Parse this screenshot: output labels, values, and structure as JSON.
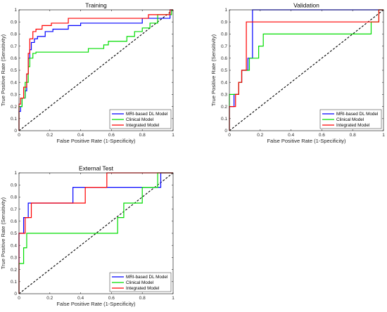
{
  "colors": {
    "mri": "#0000ff",
    "clinical": "#00dd00",
    "integrated": "#ff0000",
    "reference": "#000000",
    "axis": "#262626"
  },
  "chart_data": [
    {
      "type": "line",
      "title": "Training",
      "xlabel": "False Positive Rate (1-Specificity)",
      "ylabel": "True Positive Rate (Sensitivity)",
      "xlim": [
        0,
        1
      ],
      "ylim": [
        0,
        1
      ],
      "xticks": [
        "0",
        "0.2",
        "0.4",
        "0.6",
        "0.8",
        "1"
      ],
      "yticks": [
        "0",
        "0.1",
        "0.2",
        "0.3",
        "0.4",
        "0.5",
        "0.6",
        "0.7",
        "0.8",
        "0.9",
        "1"
      ],
      "grid": false,
      "legend_position": "bottom-right",
      "reference_line": true,
      "series": [
        {
          "name": "MRI-based DL Model",
          "color_key": "mri",
          "points": [
            [
              0,
              0
            ],
            [
              0,
              0.16
            ],
            [
              0.01,
              0.16
            ],
            [
              0.01,
              0.2
            ],
            [
              0.02,
              0.2
            ],
            [
              0.02,
              0.27
            ],
            [
              0.04,
              0.27
            ],
            [
              0.04,
              0.33
            ],
            [
              0.05,
              0.33
            ],
            [
              0.05,
              0.47
            ],
            [
              0.06,
              0.47
            ],
            [
              0.06,
              0.6
            ],
            [
              0.07,
              0.6
            ],
            [
              0.07,
              0.67
            ],
            [
              0.08,
              0.67
            ],
            [
              0.08,
              0.73
            ],
            [
              0.1,
              0.73
            ],
            [
              0.1,
              0.76
            ],
            [
              0.12,
              0.76
            ],
            [
              0.12,
              0.78
            ],
            [
              0.17,
              0.78
            ],
            [
              0.17,
              0.82
            ],
            [
              0.22,
              0.82
            ],
            [
              0.22,
              0.84
            ],
            [
              0.32,
              0.84
            ],
            [
              0.32,
              0.87
            ],
            [
              0.4,
              0.87
            ],
            [
              0.4,
              0.89
            ],
            [
              0.8,
              0.89
            ],
            [
              0.8,
              0.93
            ],
            [
              0.98,
              0.93
            ],
            [
              0.98,
              1
            ],
            [
              1,
              1
            ]
          ]
        },
        {
          "name": "Clinical Model",
          "color_key": "clinical",
          "points": [
            [
              0,
              0
            ],
            [
              0,
              0.2
            ],
            [
              0.02,
              0.2
            ],
            [
              0.02,
              0.27
            ],
            [
              0.04,
              0.27
            ],
            [
              0.04,
              0.4
            ],
            [
              0.06,
              0.4
            ],
            [
              0.06,
              0.53
            ],
            [
              0.07,
              0.53
            ],
            [
              0.07,
              0.6
            ],
            [
              0.09,
              0.6
            ],
            [
              0.09,
              0.64
            ],
            [
              0.11,
              0.64
            ],
            [
              0.11,
              0.65
            ],
            [
              0.45,
              0.65
            ],
            [
              0.45,
              0.68
            ],
            [
              0.55,
              0.68
            ],
            [
              0.55,
              0.71
            ],
            [
              0.58,
              0.71
            ],
            [
              0.58,
              0.74
            ],
            [
              0.7,
              0.74
            ],
            [
              0.7,
              0.78
            ],
            [
              0.75,
              0.78
            ],
            [
              0.75,
              0.82
            ],
            [
              0.8,
              0.82
            ],
            [
              0.8,
              0.85
            ],
            [
              0.85,
              0.85
            ],
            [
              0.85,
              0.89
            ],
            [
              0.9,
              0.89
            ],
            [
              0.9,
              0.96
            ],
            [
              0.99,
              0.96
            ],
            [
              0.99,
              1
            ],
            [
              1,
              1
            ]
          ]
        },
        {
          "name": "Integrated Model",
          "color_key": "integrated",
          "points": [
            [
              0,
              0
            ],
            [
              0,
              0.22
            ],
            [
              0.01,
              0.22
            ],
            [
              0.01,
              0.27
            ],
            [
              0.03,
              0.27
            ],
            [
              0.03,
              0.36
            ],
            [
              0.05,
              0.36
            ],
            [
              0.05,
              0.47
            ],
            [
              0.06,
              0.47
            ],
            [
              0.06,
              0.64
            ],
            [
              0.07,
              0.64
            ],
            [
              0.07,
              0.76
            ],
            [
              0.09,
              0.76
            ],
            [
              0.09,
              0.82
            ],
            [
              0.11,
              0.82
            ],
            [
              0.11,
              0.84
            ],
            [
              0.15,
              0.84
            ],
            [
              0.15,
              0.87
            ],
            [
              0.21,
              0.87
            ],
            [
              0.21,
              0.89
            ],
            [
              0.32,
              0.89
            ],
            [
              0.32,
              0.93
            ],
            [
              0.84,
              0.93
            ],
            [
              0.84,
              0.96
            ],
            [
              0.98,
              0.96
            ],
            [
              0.98,
              1
            ],
            [
              1,
              1
            ]
          ]
        }
      ]
    },
    {
      "type": "line",
      "title": "Validation",
      "xlabel": "False Positive Rate (1-Specificity)",
      "ylabel": "True Positive Rate (Sensitivity)",
      "xlim": [
        0,
        1
      ],
      "ylim": [
        0,
        1
      ],
      "xticks": [
        "0",
        "0.2",
        "0.4",
        "0.6",
        "0.8",
        "1"
      ],
      "yticks": [
        "0",
        "0.1",
        "0.2",
        "0.3",
        "0.4",
        "0.5",
        "0.6",
        "0.7",
        "0.8",
        "0.9",
        "1"
      ],
      "grid": false,
      "legend_position": "bottom-right",
      "reference_line": true,
      "series": [
        {
          "name": "MRI-based DL Model",
          "color_key": "mri",
          "points": [
            [
              0,
              0
            ],
            [
              0,
              0.2
            ],
            [
              0.03,
              0.2
            ],
            [
              0.03,
              0.3
            ],
            [
              0.06,
              0.3
            ],
            [
              0.06,
              0.4
            ],
            [
              0.08,
              0.4
            ],
            [
              0.08,
              0.5
            ],
            [
              0.12,
              0.5
            ],
            [
              0.12,
              0.6
            ],
            [
              0.15,
              0.6
            ],
            [
              0.15,
              1
            ],
            [
              1,
              1
            ]
          ]
        },
        {
          "name": "Clinical Model",
          "color_key": "clinical",
          "points": [
            [
              0,
              0
            ],
            [
              0,
              0.3
            ],
            [
              0.06,
              0.3
            ],
            [
              0.06,
              0.4
            ],
            [
              0.08,
              0.4
            ],
            [
              0.08,
              0.5
            ],
            [
              0.13,
              0.5
            ],
            [
              0.13,
              0.6
            ],
            [
              0.19,
              0.6
            ],
            [
              0.19,
              0.7
            ],
            [
              0.22,
              0.7
            ],
            [
              0.22,
              0.8
            ],
            [
              0.92,
              0.8
            ],
            [
              0.92,
              0.9
            ],
            [
              0.97,
              0.9
            ],
            [
              0.97,
              1
            ],
            [
              1,
              1
            ]
          ]
        },
        {
          "name": "Integrated Model",
          "color_key": "integrated",
          "points": [
            [
              0,
              0
            ],
            [
              0,
              0.2
            ],
            [
              0.04,
              0.2
            ],
            [
              0.04,
              0.3
            ],
            [
              0.06,
              0.3
            ],
            [
              0.06,
              0.4
            ],
            [
              0.08,
              0.4
            ],
            [
              0.08,
              0.5
            ],
            [
              0.11,
              0.5
            ],
            [
              0.11,
              0.9
            ],
            [
              0.97,
              0.9
            ],
            [
              0.97,
              1
            ],
            [
              1,
              1
            ]
          ]
        }
      ]
    },
    {
      "type": "line",
      "title": "External Test",
      "xlabel": "False Positive Rate (1-Specificity)",
      "ylabel": "True Positive Rate (Sensitivity)",
      "xlim": [
        0,
        1
      ],
      "ylim": [
        0,
        1
      ],
      "xticks": [
        "0",
        "0.2",
        "0.4",
        "0.6",
        "0.8",
        "1"
      ],
      "yticks": [
        "0",
        "0.1",
        "0.2",
        "0.3",
        "0.4",
        "0.5",
        "0.6",
        "0.7",
        "0.8",
        "0.9",
        "1"
      ],
      "grid": false,
      "legend_position": "bottom-right",
      "reference_line": true,
      "series": [
        {
          "name": "MRI-based DL Model",
          "color_key": "mri",
          "points": [
            [
              0,
              0
            ],
            [
              0,
              0.5
            ],
            [
              0.03,
              0.5
            ],
            [
              0.03,
              0.63
            ],
            [
              0.06,
              0.63
            ],
            [
              0.06,
              0.75
            ],
            [
              0.35,
              0.75
            ],
            [
              0.35,
              0.88
            ],
            [
              0.92,
              0.88
            ],
            [
              0.92,
              1
            ],
            [
              1,
              1
            ]
          ]
        },
        {
          "name": "Clinical Model",
          "color_key": "clinical",
          "points": [
            [
              0,
              0
            ],
            [
              0,
              0.25
            ],
            [
              0.03,
              0.25
            ],
            [
              0.03,
              0.38
            ],
            [
              0.05,
              0.38
            ],
            [
              0.05,
              0.5
            ],
            [
              0.64,
              0.5
            ],
            [
              0.64,
              0.63
            ],
            [
              0.68,
              0.63
            ],
            [
              0.68,
              0.75
            ],
            [
              0.8,
              0.75
            ],
            [
              0.8,
              0.88
            ],
            [
              0.9,
              0.88
            ],
            [
              0.9,
              1
            ],
            [
              1,
              1
            ]
          ]
        },
        {
          "name": "Integrated Model",
          "color_key": "integrated",
          "points": [
            [
              0,
              0
            ],
            [
              0,
              0.5
            ],
            [
              0.04,
              0.5
            ],
            [
              0.04,
              0.63
            ],
            [
              0.08,
              0.63
            ],
            [
              0.08,
              0.75
            ],
            [
              0.43,
              0.75
            ],
            [
              0.43,
              0.88
            ],
            [
              0.57,
              0.88
            ],
            [
              0.57,
              1
            ],
            [
              1,
              1
            ]
          ]
        }
      ]
    }
  ]
}
